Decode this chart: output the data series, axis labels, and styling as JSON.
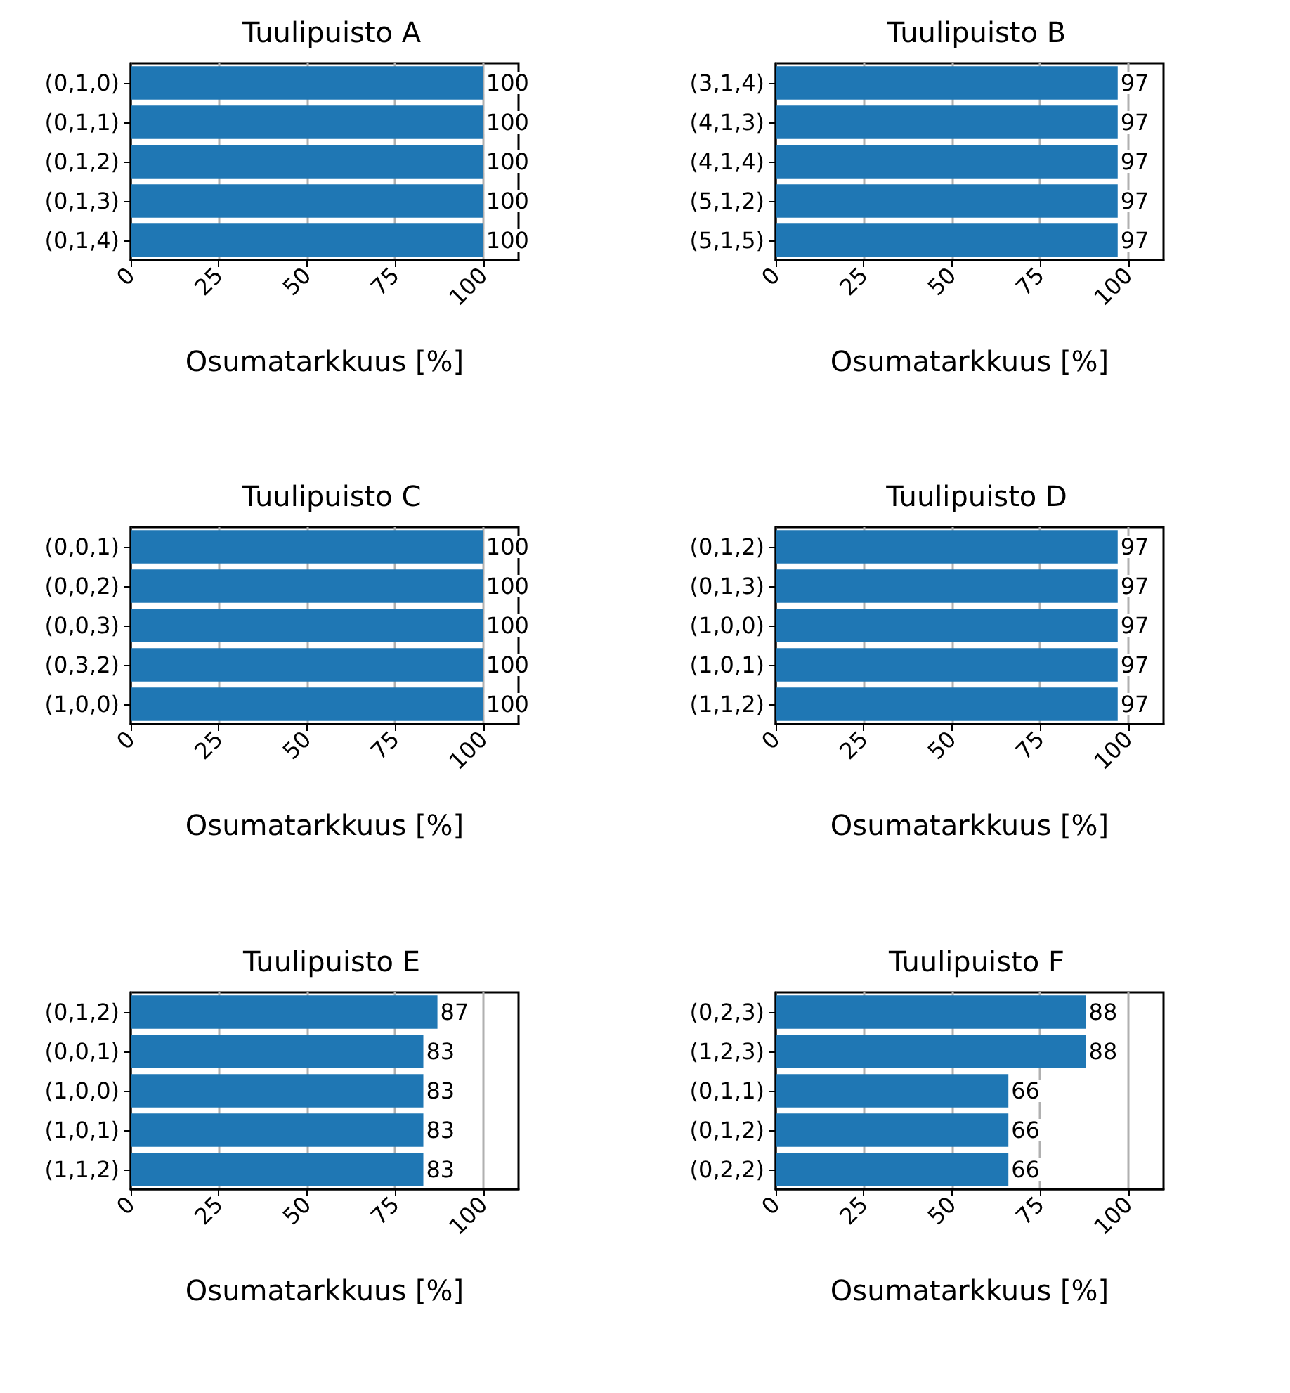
{
  "chart_data": [
    {
      "type": "bar",
      "orientation": "horizontal",
      "title": "Tuulipuisto A",
      "categories": [
        "(0,1,0)",
        "(0,1,1)",
        "(0,1,2)",
        "(0,1,3)",
        "(0,1,4)"
      ],
      "values": [
        100,
        100,
        100,
        100,
        100
      ],
      "color": "#1f77b4",
      "xlabel": "Osumatarkkuus [%]",
      "xlim": [
        0,
        110
      ],
      "xticks": [
        0,
        25,
        50,
        75,
        100
      ],
      "grid": "x",
      "data_labels": true
    },
    {
      "type": "bar",
      "orientation": "horizontal",
      "title": "Tuulipuisto B",
      "categories": [
        "(3,1,4)",
        "(4,1,3)",
        "(4,1,4)",
        "(5,1,2)",
        "(5,1,5)"
      ],
      "values": [
        97,
        97,
        97,
        97,
        97
      ],
      "color": "#1f77b4",
      "xlabel": "Osumatarkkuus [%]",
      "xlim": [
        0,
        110
      ],
      "xticks": [
        0,
        25,
        50,
        75,
        100
      ],
      "grid": "x",
      "data_labels": true
    },
    {
      "type": "bar",
      "orientation": "horizontal",
      "title": "Tuulipuisto C",
      "categories": [
        "(0,0,1)",
        "(0,0,2)",
        "(0,0,3)",
        "(0,3,2)",
        "(1,0,0)"
      ],
      "values": [
        100,
        100,
        100,
        100,
        100
      ],
      "color": "#1f77b4",
      "xlabel": "Osumatarkkuus [%]",
      "xlim": [
        0,
        110
      ],
      "xticks": [
        0,
        25,
        50,
        75,
        100
      ],
      "grid": "x",
      "data_labels": true
    },
    {
      "type": "bar",
      "orientation": "horizontal",
      "title": "Tuulipuisto D",
      "categories": [
        "(0,1,2)",
        "(0,1,3)",
        "(1,0,0)",
        "(1,0,1)",
        "(1,1,2)"
      ],
      "values": [
        97,
        97,
        97,
        97,
        97
      ],
      "color": "#1f77b4",
      "xlabel": "Osumatarkkuus [%]",
      "xlim": [
        0,
        110
      ],
      "xticks": [
        0,
        25,
        50,
        75,
        100
      ],
      "grid": "x",
      "data_labels": true
    },
    {
      "type": "bar",
      "orientation": "horizontal",
      "title": "Tuulipuisto E",
      "categories": [
        "(0,1,2)",
        "(0,0,1)",
        "(1,0,0)",
        "(1,0,1)",
        "(1,1,2)"
      ],
      "values": [
        87,
        83,
        83,
        83,
        83
      ],
      "color": "#1f77b4",
      "xlabel": "Osumatarkkuus [%]",
      "xlim": [
        0,
        110
      ],
      "xticks": [
        0,
        25,
        50,
        75,
        100
      ],
      "grid": "x",
      "data_labels": true
    },
    {
      "type": "bar",
      "orientation": "horizontal",
      "title": "Tuulipuisto F",
      "categories": [
        "(0,2,3)",
        "(1,2,3)",
        "(0,1,1)",
        "(0,1,2)",
        "(0,2,2)"
      ],
      "values": [
        88,
        88,
        66,
        66,
        66
      ],
      "color": "#1f77b4",
      "xlabel": "Osumatarkkuus [%]",
      "xlim": [
        0,
        110
      ],
      "xticks": [
        0,
        25,
        50,
        75,
        100
      ],
      "grid": "x",
      "data_labels": true
    }
  ]
}
